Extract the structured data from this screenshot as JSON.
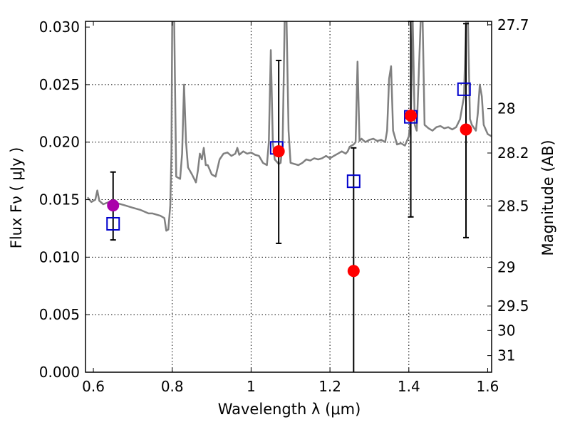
{
  "chart_data": {
    "type": "scatter",
    "x_axis": {
      "label": "Wavelength  λ (μm)",
      "range": [
        0.58,
        1.61
      ],
      "ticks": [
        0.6,
        0.8,
        1.0,
        1.2,
        1.4,
        1.6
      ],
      "tick_labels": [
        "0.6",
        "0.8",
        "1",
        "1.2",
        "1.4",
        "1.6"
      ]
    },
    "y_axis_left": {
      "label": "Flux  Fν  ( μJy )",
      "range": [
        0.0,
        0.0305
      ],
      "ticks": [
        0.0,
        0.005,
        0.01,
        0.015,
        0.02,
        0.025,
        0.03
      ],
      "tick_labels": [
        "0.000",
        "0.005",
        "0.010",
        "0.015",
        "0.020",
        "0.025",
        "0.030"
      ]
    },
    "y_axis_right": {
      "label": "Magnitude (AB)",
      "tick_magnitudes": [
        27.7,
        28,
        28.2,
        28.5,
        29,
        29.5,
        30,
        31
      ],
      "tick_labels": [
        "27.7",
        "28",
        "28.2",
        "28.5",
        "29",
        "29.5",
        "30",
        "31"
      ]
    },
    "grid": true,
    "grid_x": [
      0.8,
      1.0,
      1.2,
      1.4
    ],
    "grid_y": [
      0.005,
      0.01,
      0.015,
      0.02,
      0.025
    ],
    "series": [
      {
        "kind": "spectrum_line",
        "color": "#808080",
        "points": [
          [
            0.585,
            0.0152
          ],
          [
            0.595,
            0.0148
          ],
          [
            0.605,
            0.015
          ],
          [
            0.61,
            0.0158
          ],
          [
            0.615,
            0.0149
          ],
          [
            0.625,
            0.0146
          ],
          [
            0.64,
            0.0148
          ],
          [
            0.66,
            0.0147
          ],
          [
            0.68,
            0.0145
          ],
          [
            0.7,
            0.0143
          ],
          [
            0.72,
            0.0141
          ],
          [
            0.74,
            0.0138
          ],
          [
            0.75,
            0.0138
          ],
          [
            0.76,
            0.0137
          ],
          [
            0.77,
            0.0136
          ],
          [
            0.78,
            0.0134
          ],
          [
            0.785,
            0.0123
          ],
          [
            0.79,
            0.0124
          ],
          [
            0.795,
            0.0145
          ],
          [
            0.798,
            0.019
          ],
          [
            0.8,
            0.0305
          ],
          [
            0.805,
            0.0305
          ],
          [
            0.81,
            0.017
          ],
          [
            0.82,
            0.0168
          ],
          [
            0.825,
            0.019
          ],
          [
            0.83,
            0.025
          ],
          [
            0.835,
            0.02
          ],
          [
            0.84,
            0.0178
          ],
          [
            0.85,
            0.0172
          ],
          [
            0.86,
            0.0165
          ],
          [
            0.865,
            0.0175
          ],
          [
            0.87,
            0.019
          ],
          [
            0.875,
            0.0185
          ],
          [
            0.88,
            0.0195
          ],
          [
            0.885,
            0.018
          ],
          [
            0.89,
            0.018
          ],
          [
            0.9,
            0.0172
          ],
          [
            0.91,
            0.017
          ],
          [
            0.92,
            0.0185
          ],
          [
            0.93,
            0.019
          ],
          [
            0.94,
            0.0191
          ],
          [
            0.95,
            0.0188
          ],
          [
            0.96,
            0.019
          ],
          [
            0.965,
            0.0195
          ],
          [
            0.97,
            0.0189
          ],
          [
            0.98,
            0.0192
          ],
          [
            0.99,
            0.019
          ],
          [
            1.0,
            0.0191
          ],
          [
            1.01,
            0.0189
          ],
          [
            1.02,
            0.0188
          ],
          [
            1.03,
            0.0182
          ],
          [
            1.04,
            0.018
          ],
          [
            1.045,
            0.02
          ],
          [
            1.05,
            0.028
          ],
          [
            1.055,
            0.02
          ],
          [
            1.06,
            0.0185
          ],
          [
            1.07,
            0.0181
          ],
          [
            1.075,
            0.0182
          ],
          [
            1.08,
            0.02
          ],
          [
            1.085,
            0.0305
          ],
          [
            1.09,
            0.0305
          ],
          [
            1.095,
            0.021
          ],
          [
            1.1,
            0.0182
          ],
          [
            1.11,
            0.0181
          ],
          [
            1.12,
            0.018
          ],
          [
            1.13,
            0.0182
          ],
          [
            1.14,
            0.0185
          ],
          [
            1.15,
            0.0184
          ],
          [
            1.16,
            0.0186
          ],
          [
            1.17,
            0.0185
          ],
          [
            1.18,
            0.0186
          ],
          [
            1.19,
            0.0188
          ],
          [
            1.2,
            0.0186
          ],
          [
            1.21,
            0.0188
          ],
          [
            1.22,
            0.019
          ],
          [
            1.23,
            0.0192
          ],
          [
            1.24,
            0.019
          ],
          [
            1.245,
            0.0192
          ],
          [
            1.25,
            0.0196
          ],
          [
            1.255,
            0.0197
          ],
          [
            1.26,
            0.0198
          ],
          [
            1.265,
            0.02
          ],
          [
            1.27,
            0.027
          ],
          [
            1.275,
            0.0201
          ],
          [
            1.28,
            0.0203
          ],
          [
            1.29,
            0.02
          ],
          [
            1.3,
            0.0202
          ],
          [
            1.31,
            0.0203
          ],
          [
            1.32,
            0.0201
          ],
          [
            1.33,
            0.0202
          ],
          [
            1.34,
            0.02
          ],
          [
            1.345,
            0.021
          ],
          [
            1.35,
            0.0255
          ],
          [
            1.355,
            0.0266
          ],
          [
            1.36,
            0.021
          ],
          [
            1.37,
            0.0198
          ],
          [
            1.38,
            0.0199
          ],
          [
            1.39,
            0.0197
          ],
          [
            1.4,
            0.0205
          ],
          [
            1.405,
            0.0222
          ],
          [
            1.41,
            0.0305
          ],
          [
            1.415,
            0.0215
          ],
          [
            1.42,
            0.021
          ],
          [
            1.43,
            0.0305
          ],
          [
            1.435,
            0.0305
          ],
          [
            1.44,
            0.0215
          ],
          [
            1.45,
            0.0212
          ],
          [
            1.46,
            0.021
          ],
          [
            1.47,
            0.0213
          ],
          [
            1.48,
            0.0214
          ],
          [
            1.49,
            0.0212
          ],
          [
            1.5,
            0.0213
          ],
          [
            1.51,
            0.0211
          ],
          [
            1.52,
            0.0213
          ],
          [
            1.53,
            0.022
          ],
          [
            1.54,
            0.024
          ],
          [
            1.545,
            0.0305
          ],
          [
            1.55,
            0.0305
          ],
          [
            1.555,
            0.022
          ],
          [
            1.56,
            0.0215
          ],
          [
            1.57,
            0.021
          ],
          [
            1.575,
            0.0225
          ],
          [
            1.58,
            0.025
          ],
          [
            1.585,
            0.024
          ],
          [
            1.59,
            0.0215
          ],
          [
            1.6,
            0.0207
          ],
          [
            1.61,
            0.0205
          ]
        ]
      },
      {
        "kind": "model_squares",
        "color": "#0000cc",
        "points": [
          [
            0.65,
            0.0129
          ],
          [
            1.065,
            0.0195
          ],
          [
            1.26,
            0.0166
          ],
          [
            1.405,
            0.0222
          ],
          [
            1.54,
            0.0246
          ]
        ]
      },
      {
        "kind": "observed_points",
        "color": "#ff0000",
        "points": [
          {
            "x": 1.07,
            "y": 0.0192,
            "err_low": 0.0112,
            "err_high": 0.0271
          },
          {
            "x": 1.26,
            "y": 0.0088,
            "err_low": 0.0,
            "err_high": 0.0195
          },
          {
            "x": 1.405,
            "y": 0.0223,
            "err_low": 0.0135,
            "err_high": 0.0305
          },
          {
            "x": 1.545,
            "y": 0.0211,
            "err_low": 0.0117,
            "err_high": 0.0303
          }
        ]
      },
      {
        "kind": "observed_points",
        "color": "#aa00aa",
        "points": [
          {
            "x": 0.65,
            "y": 0.0145,
            "err_low": 0.0115,
            "err_high": 0.0174
          }
        ]
      }
    ]
  }
}
